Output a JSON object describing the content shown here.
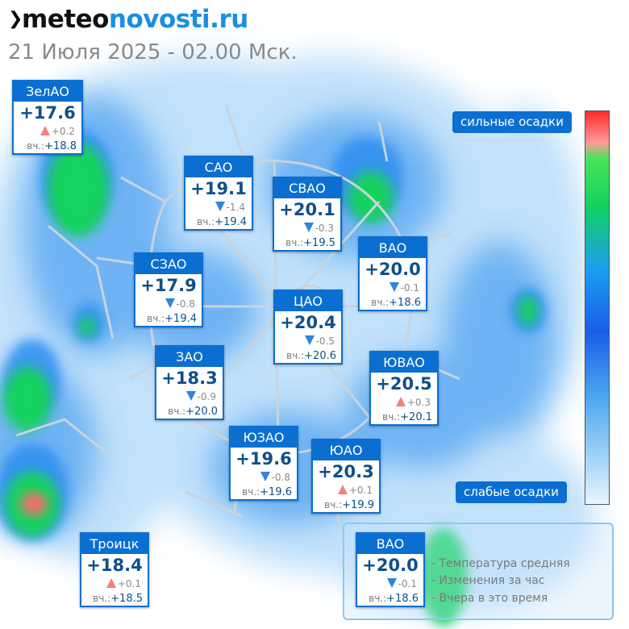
{
  "header": {
    "brand_part1": "meteo",
    "brand_part2": "novosti.ru",
    "subtitle": "21 Июля 2025 - 02.00 Мск."
  },
  "colors": {
    "accent": "#0b6fd1",
    "temperature_text": "#0f4f8a",
    "change_down": "#2d86d9",
    "change_up": "#f28080",
    "precip_light": "#bfe0fa",
    "precip_medium": "#2e8ff0",
    "precip_heavy": "#12d25e",
    "precip_extreme": "#ff2b2b"
  },
  "icons": {
    "brand_mark": "chevron-right-icon",
    "decrease": "triangle-down-icon",
    "increase": "triangle-up-icon"
  },
  "districts": [
    {
      "name": "ЗелАО",
      "temp": "+17.6",
      "change": "+0.2",
      "trend": "up",
      "yesterday_label": "вч.:",
      "yesterday": "+18.8"
    },
    {
      "name": "САО",
      "temp": "+19.1",
      "change": "-1.4",
      "trend": "down",
      "yesterday_label": "вч.:",
      "yesterday": "+19.4"
    },
    {
      "name": "СВАО",
      "temp": "+20.1",
      "change": "-0.3",
      "trend": "down",
      "yesterday_label": "вч.:",
      "yesterday": "+19.5"
    },
    {
      "name": "ВАО",
      "temp": "+20.0",
      "change": "-0.1",
      "trend": "down",
      "yesterday_label": "вч.:",
      "yesterday": "+18.6"
    },
    {
      "name": "СЗАО",
      "temp": "+17.9",
      "change": "-0.8",
      "trend": "down",
      "yesterday_label": "вч.:",
      "yesterday": "+19.4"
    },
    {
      "name": "ЦАО",
      "temp": "+20.4",
      "change": "-0.5",
      "trend": "down",
      "yesterday_label": "вч.:",
      "yesterday": "+20.6"
    },
    {
      "name": "ЗАО",
      "temp": "+18.3",
      "change": "-0.9",
      "trend": "down",
      "yesterday_label": "вч.:",
      "yesterday": "+20.0"
    },
    {
      "name": "ЮВАО",
      "temp": "+20.5",
      "change": "+0.3",
      "trend": "up",
      "yesterday_label": "вч.:",
      "yesterday": "+20.1"
    },
    {
      "name": "ЮЗАО",
      "temp": "+19.6",
      "change": "-0.8",
      "trend": "down",
      "yesterday_label": "вч.:",
      "yesterday": "+19.6"
    },
    {
      "name": "ЮАО",
      "temp": "+20.3",
      "change": "+0.1",
      "trend": "up",
      "yesterday_label": "вч.:",
      "yesterday": "+19.9"
    },
    {
      "name": "Троицк",
      "temp": "+18.4",
      "change": "+0.1",
      "trend": "up",
      "yesterday_label": "вч.:",
      "yesterday": "+18.5"
    }
  ],
  "scale": {
    "top_label": "сильные осадки",
    "bottom_label": "слабые осадки"
  },
  "legend": {
    "sample": {
      "name": "ВАО",
      "temp": "+20.0",
      "change": "-0.1",
      "trend": "down",
      "yesterday_label": "вч.:",
      "yesterday": "+18.6"
    },
    "line1": "- Температура средняя",
    "line2": "- Изменения за час",
    "line3": "- Вчера в это время"
  }
}
